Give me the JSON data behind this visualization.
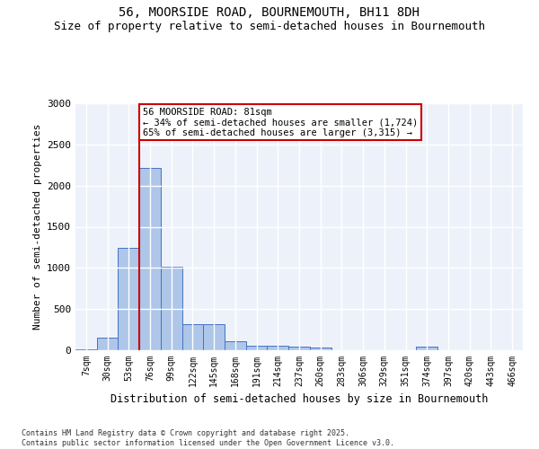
{
  "title_line1": "56, MOORSIDE ROAD, BOURNEMOUTH, BH11 8DH",
  "title_line2": "Size of property relative to semi-detached houses in Bournemouth",
  "xlabel": "Distribution of semi-detached houses by size in Bournemouth",
  "ylabel": "Number of semi-detached properties",
  "footer": "Contains HM Land Registry data © Crown copyright and database right 2025.\nContains public sector information licensed under the Open Government Licence v3.0.",
  "categories": [
    "7sqm",
    "30sqm",
    "53sqm",
    "76sqm",
    "99sqm",
    "122sqm",
    "145sqm",
    "168sqm",
    "191sqm",
    "214sqm",
    "237sqm",
    "260sqm",
    "283sqm",
    "306sqm",
    "329sqm",
    "351sqm",
    "374sqm",
    "397sqm",
    "420sqm",
    "443sqm",
    "466sqm"
  ],
  "values": [
    15,
    155,
    1240,
    2210,
    1020,
    320,
    320,
    105,
    60,
    60,
    40,
    30,
    0,
    0,
    0,
    0,
    40,
    0,
    0,
    0,
    0
  ],
  "bar_color": "#aec6e8",
  "bar_edge_color": "#4472c4",
  "property_label": "56 MOORSIDE ROAD: 81sqm",
  "pct_smaller": 34,
  "pct_larger": 65,
  "count_smaller": 1724,
  "count_larger": 3315,
  "vline_color": "#cc0000",
  "vline_x_index": 3,
  "annotation_box_color": "#cc0000",
  "ylim": [
    0,
    3000
  ],
  "yticks": [
    0,
    500,
    1000,
    1500,
    2000,
    2500,
    3000
  ],
  "background_color": "#edf2fa",
  "grid_color": "#ffffff",
  "title_fontsize": 10,
  "subtitle_fontsize": 9
}
